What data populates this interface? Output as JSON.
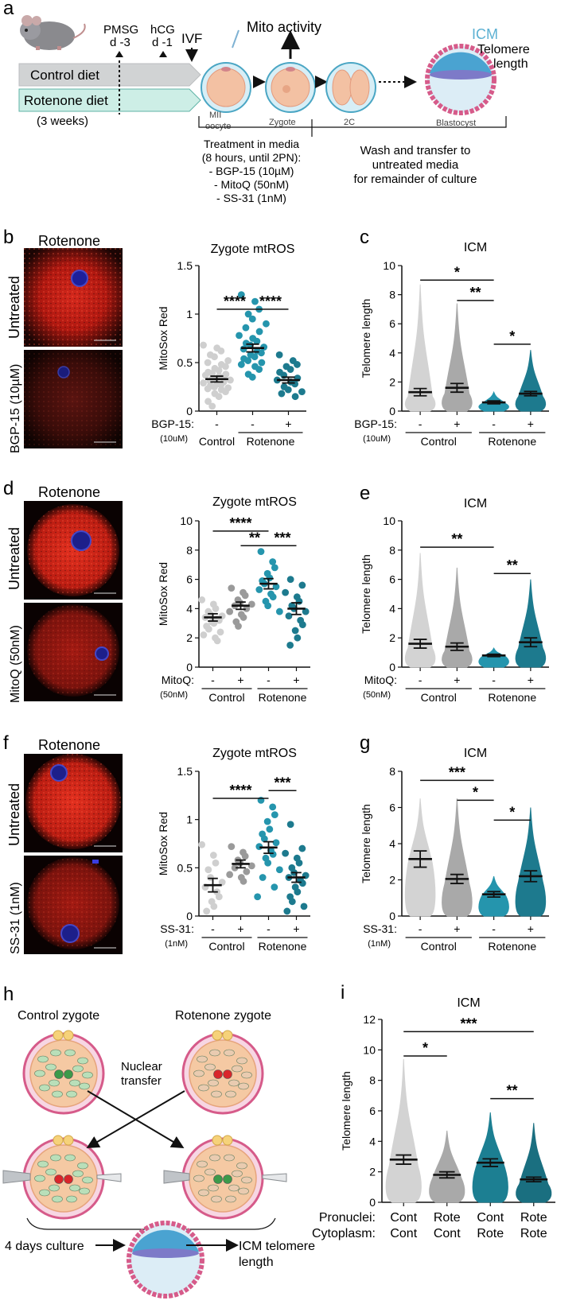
{
  "panel_a": {
    "letter": "a",
    "pmsg": "PMSG",
    "pmsg_day": "d -3",
    "hcg": "hCG",
    "hcg_day": "d -1",
    "ivf": "IVF",
    "control_diet": "Control diet",
    "rotenone_diet": "Rotenone diet",
    "weeks": "(3 weeks)",
    "mito_activity": "Mito activity",
    "mii": "MII",
    "oocyte": "oocyte",
    "zygote": "Zygote",
    "two_c": "2C",
    "blastocyst": "Blastocyst",
    "icm": "ICM",
    "telomere": "Telomere",
    "length": "length",
    "treatment": [
      "Treatment in media",
      "(8 hours, until 2PN):",
      "- BGP-15 (10µM)",
      "- MitoQ (50nM)",
      "- SS-31 (1nM)"
    ],
    "wash": [
      "Wash and transfer to",
      "untreated media",
      "for remainder of culture"
    ]
  },
  "panel_b": {
    "letter": "b",
    "title": "Rotenone",
    "top_label": "Untreated",
    "bottom_label": "BGP-15 (10µM)"
  },
  "panel_d": {
    "letter": "d",
    "title": "Rotenone",
    "top_label": "Untreated",
    "bottom_label": "MitoQ (50nM)"
  },
  "panel_f": {
    "letter": "f",
    "title": "Rotenone",
    "top_label": "Untreated",
    "bottom_label": "SS-31 (1nM)"
  },
  "panel_h": {
    "letter": "h",
    "control_zygote": "Control zygote",
    "rotenone_zygote": "Rotenone zygote",
    "nuclear": "Nuclear",
    "transfer": "transfer",
    "culture": "4 days culture",
    "icm_tel": "ICM telomere",
    "length": "length"
  },
  "chart_data": [
    {
      "id": "c_b",
      "letter": "",
      "type": "scatter",
      "title": "Zygote mtROS",
      "ylabel": "MitoSox Red",
      "ylim": [
        0,
        1.5
      ],
      "ticks": [
        0,
        0.5,
        1,
        1.5
      ],
      "tick_labels": [
        "0",
        "0.5",
        "1",
        "1.5"
      ],
      "treatment_label": "BGP-15:",
      "dose": "(10uM)",
      "signs": [
        "-",
        "-",
        "+"
      ],
      "groups": [
        "Control",
        "Rotenone"
      ],
      "series": [
        {
          "name": "Control -",
          "color": "#cfcfcf",
          "mean": 0.33,
          "sem": 0.03,
          "values": [
            0.68,
            0.65,
            0.62,
            0.58,
            0.56,
            0.52,
            0.5,
            0.48,
            0.46,
            0.44,
            0.42,
            0.4,
            0.39,
            0.38,
            0.37,
            0.36,
            0.35,
            0.34,
            0.33,
            0.32,
            0.31,
            0.3,
            0.29,
            0.28,
            0.27,
            0.26,
            0.25,
            0.24,
            0.23,
            0.22,
            0.2,
            0.18,
            0.15,
            0.1,
            0.05
          ]
        },
        {
          "name": "Rotenone -",
          "color": "#2595ad",
          "mean": 0.65,
          "sem": 0.04,
          "values": [
            1.2,
            1.13,
            1.05,
            1.0,
            0.95,
            0.9,
            0.86,
            0.82,
            0.78,
            0.75,
            0.72,
            0.7,
            0.68,
            0.66,
            0.64,
            0.62,
            0.6,
            0.58,
            0.56,
            0.54,
            0.52,
            0.5,
            0.48,
            0.46,
            0.43,
            0.38,
            0.35
          ]
        },
        {
          "name": "Rotenone +",
          "color": "#1d7a8e",
          "mean": 0.32,
          "sem": 0.03,
          "values": [
            0.58,
            0.52,
            0.48,
            0.46,
            0.43,
            0.4,
            0.37,
            0.34,
            0.32,
            0.3,
            0.28,
            0.25,
            0.22,
            0.2,
            0.18,
            0.15
          ]
        }
      ],
      "brackets": [
        {
          "from": 0,
          "to": 1,
          "label": "****",
          "y": 1.05
        },
        {
          "from": 1,
          "to": 2,
          "label": "****",
          "y": 1.05
        }
      ]
    },
    {
      "id": "c_c",
      "letter": "c",
      "type": "violin",
      "title": "ICM",
      "ylabel": "Telomere length",
      "ylim": [
        0,
        10
      ],
      "ticks": [
        0,
        2,
        4,
        6,
        8,
        10
      ],
      "tick_labels": [
        "0",
        "2",
        "4",
        "6",
        "8",
        "10"
      ],
      "treatment_label": "BGP-15:",
      "dose": "(10uM)",
      "signs": [
        "-",
        "+",
        "-",
        "+"
      ],
      "groups": [
        "Control",
        "Rotenone"
      ],
      "series": [
        {
          "name": "Control -",
          "color": "#d3d3d3",
          "mean": 1.3,
          "sem": 0.25,
          "max": 8.7,
          "median": 1.0
        },
        {
          "name": "Control +",
          "color": "#a9a9a9",
          "mean": 1.6,
          "sem": 0.3,
          "max": 7.4,
          "median": 1.2
        },
        {
          "name": "Rotenone -",
          "color": "#2595ad",
          "mean": 0.6,
          "sem": 0.1,
          "max": 1.3,
          "median": 0.5
        },
        {
          "name": "Rotenone +",
          "color": "#1d7a8e",
          "mean": 1.2,
          "sem": 0.15,
          "max": 4.2,
          "median": 1.0
        }
      ],
      "brackets": [
        {
          "from": 0,
          "to": 2,
          "label": "*",
          "y": 9.0
        },
        {
          "from": 1,
          "to": 2,
          "label": "**",
          "y": 7.6
        },
        {
          "from": 2,
          "to": 3,
          "label": "*",
          "y": 4.6
        }
      ]
    },
    {
      "id": "c_d",
      "letter": "",
      "type": "scatter",
      "title": "Zygote mtROS",
      "ylabel": "MitoSox Red",
      "ylim": [
        0,
        10
      ],
      "ticks": [
        0,
        2,
        4,
        6,
        8,
        10
      ],
      "tick_labels": [
        "0",
        "2",
        "4",
        "6",
        "8",
        "10"
      ],
      "treatment_label": "MitoQ:",
      "dose": "(50nM)",
      "signs": [
        "-",
        "+",
        "-",
        "+"
      ],
      "groups": [
        "Control",
        "Rotenone"
      ],
      "series": [
        {
          "name": "Control -",
          "color": "#cfcfcf",
          "mean": 3.4,
          "sem": 0.25,
          "values": [
            4.6,
            4.3,
            4.0,
            3.8,
            3.6,
            3.5,
            3.4,
            3.3,
            3.2,
            3.1,
            3.0,
            2.8,
            2.6,
            2.4,
            2.2,
            2.0,
            1.8
          ]
        },
        {
          "name": "Control +",
          "color": "#9a9a9a",
          "mean": 4.2,
          "sem": 0.25,
          "values": [
            5.4,
            5.1,
            4.9,
            4.6,
            4.4,
            4.3,
            4.2,
            4.0,
            3.8,
            3.6,
            3.4,
            3.1,
            2.8
          ]
        },
        {
          "name": "Rotenone -",
          "color": "#2595ad",
          "mean": 5.7,
          "sem": 0.35,
          "values": [
            7.9,
            7.2,
            6.8,
            6.4,
            6.1,
            5.9,
            5.7,
            5.5,
            5.3,
            5.0,
            4.8,
            4.5,
            4.2,
            3.8
          ]
        },
        {
          "name": "Rotenone +",
          "color": "#1d7a8e",
          "mean": 4.0,
          "sem": 0.4,
          "values": [
            6.0,
            5.6,
            5.1,
            4.8,
            4.5,
            4.2,
            4.0,
            3.8,
            3.5,
            3.2,
            2.9,
            2.5,
            2.0,
            1.5
          ]
        }
      ],
      "brackets": [
        {
          "from": 0,
          "to": 2,
          "label": "****",
          "y": 9.3
        },
        {
          "from": 1,
          "to": 2,
          "label": "**",
          "y": 8.3
        },
        {
          "from": 2,
          "to": 3,
          "label": "***",
          "y": 8.3
        }
      ]
    },
    {
      "id": "c_e",
      "letter": "e",
      "type": "violin",
      "title": "ICM",
      "ylabel": "Telomere length",
      "ylim": [
        0,
        10
      ],
      "ticks": [
        0,
        2,
        4,
        6,
        8,
        10
      ],
      "tick_labels": [
        "0",
        "2",
        "4",
        "6",
        "8",
        "10"
      ],
      "treatment_label": "MitoQ:",
      "dose": "(50nM)",
      "signs": [
        "-",
        "+",
        "-",
        "+"
      ],
      "groups": [
        "Control",
        "Rotenone"
      ],
      "series": [
        {
          "name": "Control -",
          "color": "#d3d3d3",
          "mean": 1.6,
          "sem": 0.3,
          "max": 7.8,
          "median": 1.3
        },
        {
          "name": "Control +",
          "color": "#a9a9a9",
          "mean": 1.4,
          "sem": 0.25,
          "max": 6.8,
          "median": 1.1
        },
        {
          "name": "Rotenone -",
          "color": "#2595ad",
          "mean": 0.8,
          "sem": 0.08,
          "max": 1.3,
          "median": 0.7
        },
        {
          "name": "Rotenone +",
          "color": "#1d7a8e",
          "mean": 1.7,
          "sem": 0.3,
          "max": 6.0,
          "median": 1.3
        }
      ],
      "brackets": [
        {
          "from": 0,
          "to": 2,
          "label": "**",
          "y": 8.2
        },
        {
          "from": 2,
          "to": 3,
          "label": "**",
          "y": 6.4
        }
      ]
    },
    {
      "id": "c_f",
      "letter": "",
      "type": "scatter",
      "title": "Zygote mtROS",
      "ylabel": "MitoSox Red",
      "ylim": [
        0,
        1.5
      ],
      "ticks": [
        0,
        0.5,
        1,
        1.5
      ],
      "tick_labels": [
        "0",
        "0.5",
        "1",
        "1.5"
      ],
      "treatment_label": "SS-31:",
      "dose": "(1nM)",
      "signs": [
        "-",
        "+",
        "-",
        "+"
      ],
      "groups": [
        "Control",
        "Rotenone"
      ],
      "series": [
        {
          "name": "Control -",
          "color": "#cfcfcf",
          "mean": 0.32,
          "sem": 0.07,
          "values": [
            0.74,
            0.63,
            0.55,
            0.48,
            0.4,
            0.35,
            0.3,
            0.25,
            0.2,
            0.15,
            0.1,
            0.05
          ]
        },
        {
          "name": "Control +",
          "color": "#9a9a9a",
          "mean": 0.54,
          "sem": 0.04,
          "values": [
            0.72,
            0.66,
            0.62,
            0.58,
            0.55,
            0.52,
            0.5,
            0.46,
            0.43,
            0.4,
            0.36
          ]
        },
        {
          "name": "Rotenone -",
          "color": "#2595ad",
          "mean": 0.71,
          "sem": 0.06,
          "values": [
            1.2,
            1.13,
            1.05,
            0.98,
            0.9,
            0.85,
            0.8,
            0.76,
            0.72,
            0.68,
            0.64,
            0.6,
            0.55,
            0.48,
            0.4,
            0.3,
            0.2
          ]
        },
        {
          "name": "Rotenone +",
          "color": "#1d7a8e",
          "mean": 0.4,
          "sem": 0.05,
          "values": [
            0.95,
            0.7,
            0.65,
            0.6,
            0.55,
            0.5,
            0.45,
            0.42,
            0.4,
            0.37,
            0.34,
            0.3,
            0.25,
            0.2,
            0.15,
            0.1,
            0.05
          ]
        }
      ],
      "brackets": [
        {
          "from": 0,
          "to": 2,
          "label": "****",
          "y": 1.22
        },
        {
          "from": 2,
          "to": 3,
          "label": "***",
          "y": 1.3
        }
      ]
    },
    {
      "id": "c_g",
      "letter": "g",
      "type": "violin",
      "title": "ICM",
      "ylabel": "Telomere length",
      "ylim": [
        0,
        8
      ],
      "ticks": [
        0,
        2,
        4,
        6,
        8
      ],
      "tick_labels": [
        "0",
        "2",
        "4",
        "6",
        "8"
      ],
      "treatment_label": "SS-31:",
      "dose": "(1nM)",
      "signs": [
        "-",
        "+",
        "-",
        "+"
      ],
      "groups": [
        "Control",
        "Rotenone"
      ],
      "series": [
        {
          "name": "Control -",
          "color": "#d3d3d3",
          "mean": 3.15,
          "sem": 0.45,
          "max": 6.5,
          "median": 2.9
        },
        {
          "name": "Control +",
          "color": "#a9a9a9",
          "mean": 2.05,
          "sem": 0.25,
          "max": 6.5,
          "median": 1.8
        },
        {
          "name": "Rotenone -",
          "color": "#2595ad",
          "mean": 1.2,
          "sem": 0.15,
          "max": 2.2,
          "median": 1.1
        },
        {
          "name": "Rotenone +",
          "color": "#1d7a8e",
          "mean": 2.2,
          "sem": 0.3,
          "max": 6.0,
          "median": 1.9
        }
      ],
      "brackets": [
        {
          "from": 0,
          "to": 2,
          "label": "***",
          "y": 7.5
        },
        {
          "from": 1,
          "to": 2,
          "label": "*",
          "y": 6.4
        },
        {
          "from": 2,
          "to": 3,
          "label": "*",
          "y": 5.3
        }
      ]
    },
    {
      "id": "c_i",
      "letter": "i",
      "type": "violin",
      "title": "ICM",
      "ylabel": "Telomere length",
      "ylim": [
        0,
        12
      ],
      "ticks": [
        0,
        2,
        4,
        6,
        8,
        10,
        12
      ],
      "tick_labels": [
        "0",
        "2",
        "4",
        "6",
        "8",
        "10",
        "12"
      ],
      "row1_label": "Pronuclei:",
      "row2_label": "Cytoplasm:",
      "row1": [
        "Cont",
        "Rote",
        "Cont",
        "Rote"
      ],
      "row2": [
        "Cont",
        "Cont",
        "Rote",
        "Rote"
      ],
      "series": [
        {
          "name": "Cont/Cont",
          "color": "#d3d3d3",
          "mean": 2.8,
          "sem": 0.3,
          "max": 9.4,
          "median": 2.4
        },
        {
          "name": "Rote/Cont",
          "color": "#a9a9a9",
          "mean": 1.8,
          "sem": 0.2,
          "max": 4.7,
          "median": 1.6
        },
        {
          "name": "Cont/Rote",
          "color": "#1c7f92",
          "mean": 2.6,
          "sem": 0.25,
          "max": 5.9,
          "median": 2.3
        },
        {
          "name": "Rote/Rote",
          "color": "#1a6f80",
          "mean": 1.5,
          "sem": 0.15,
          "max": 5.2,
          "median": 1.2
        }
      ],
      "brackets": [
        {
          "from": 0,
          "to": 3,
          "label": "***",
          "y": 11.2
        },
        {
          "from": 0,
          "to": 1,
          "label": "*",
          "y": 9.6
        },
        {
          "from": 2,
          "to": 3,
          "label": "**",
          "y": 6.8
        }
      ]
    }
  ]
}
